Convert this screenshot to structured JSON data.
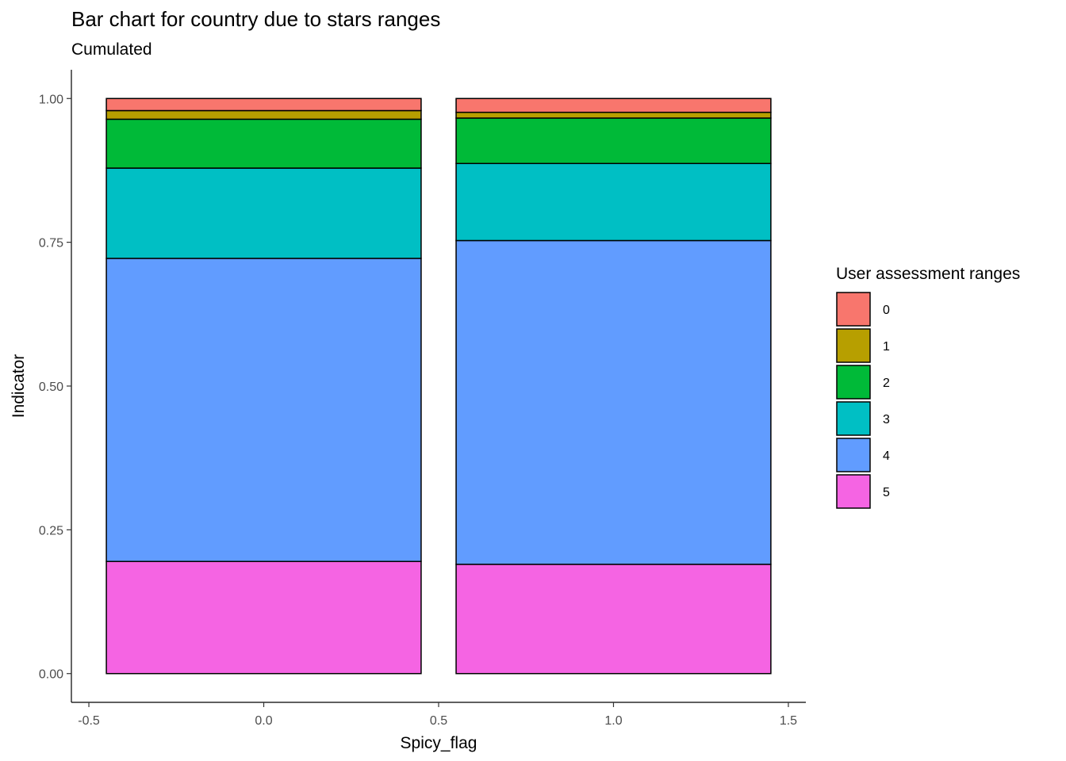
{
  "chart_data": {
    "type": "bar",
    "stacked": true,
    "title": "Bar chart for country due to stars ranges",
    "subtitle": "Cumulated",
    "xlabel": "Spicy_flag",
    "ylabel": "Indicator",
    "xlim": [
      -0.55,
      1.55
    ],
    "ylim": [
      -0.05,
      1.05
    ],
    "x_ticks": [
      -0.5,
      0.0,
      0.5,
      1.0,
      1.5
    ],
    "x_tick_labels": [
      "-0.5",
      "0.0",
      "0.5",
      "1.0",
      "1.5"
    ],
    "y_ticks": [
      0.0,
      0.25,
      0.5,
      0.75,
      1.0
    ],
    "y_tick_labels": [
      "0.00",
      "0.25",
      "0.50",
      "0.75",
      "1.00"
    ],
    "grid": false,
    "legend": {
      "title": "User assessment ranges",
      "position": "right"
    },
    "x": [
      0,
      1
    ],
    "bar_width": 0.9,
    "series": [
      {
        "name": "0",
        "color": "#F8766D",
        "values": [
          0.021,
          0.024
        ]
      },
      {
        "name": "1",
        "color": "#B79F00",
        "values": [
          0.015,
          0.01
        ]
      },
      {
        "name": "2",
        "color": "#00BA38",
        "values": [
          0.085,
          0.079
        ]
      },
      {
        "name": "3",
        "color": "#00BFC4",
        "values": [
          0.157,
          0.134
        ]
      },
      {
        "name": "4",
        "color": "#619CFF",
        "values": [
          0.527,
          0.563
        ]
      },
      {
        "name": "5",
        "color": "#F564E3",
        "values": [
          0.195,
          0.19
        ]
      }
    ]
  }
}
